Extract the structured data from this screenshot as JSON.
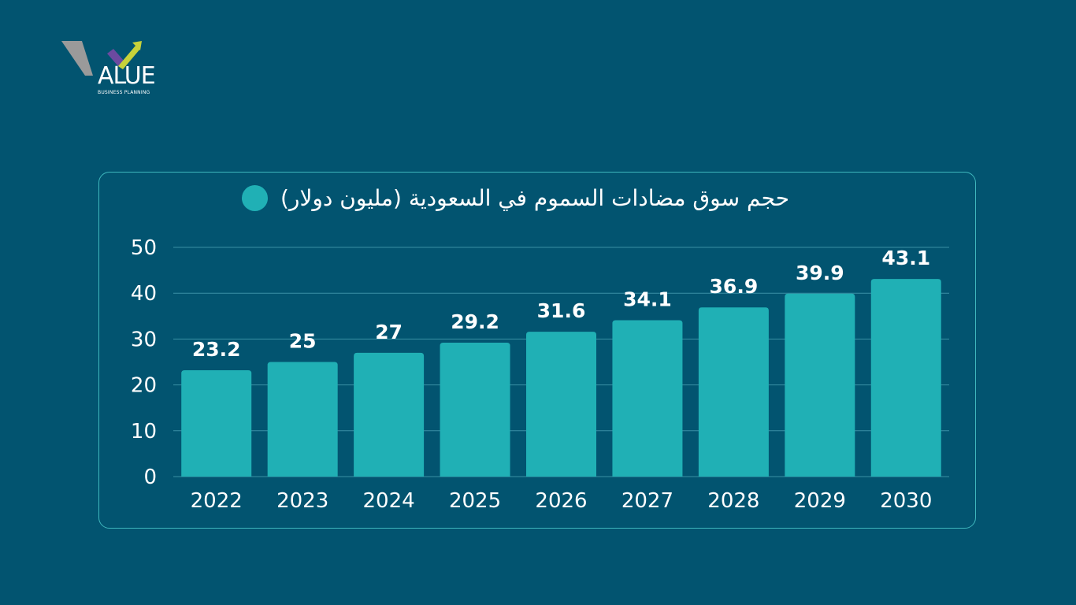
{
  "logo": {
    "mark": "ALUE",
    "sub": "BUSINESS PLANNING"
  },
  "colors": {
    "background": "#025470",
    "bar": "#20b0b5",
    "gridline": "#3a8fa5",
    "text": "#ffffff",
    "card_border": "#3fb7bd"
  },
  "chart_data": {
    "type": "bar",
    "series": [
      {
        "name": "حجم سوق مضادات السموم في السعودية (مليون دولار)",
        "values": [
          23.2,
          25,
          27,
          29.2,
          31.6,
          34.1,
          36.9,
          39.9,
          43.1
        ]
      }
    ],
    "categories": [
      "2022",
      "2023",
      "2024",
      "2025",
      "2026",
      "2027",
      "2028",
      "2029",
      "2030"
    ],
    "data_labels": [
      "23.2",
      "25",
      "27",
      "29.2",
      "31.6",
      "34.1",
      "36.9",
      "39.9",
      "43.1"
    ],
    "yticks": [
      "0",
      "10",
      "20",
      "30",
      "40",
      "50"
    ],
    "ylim": [
      0,
      50
    ],
    "grid": true,
    "legend": "top"
  }
}
